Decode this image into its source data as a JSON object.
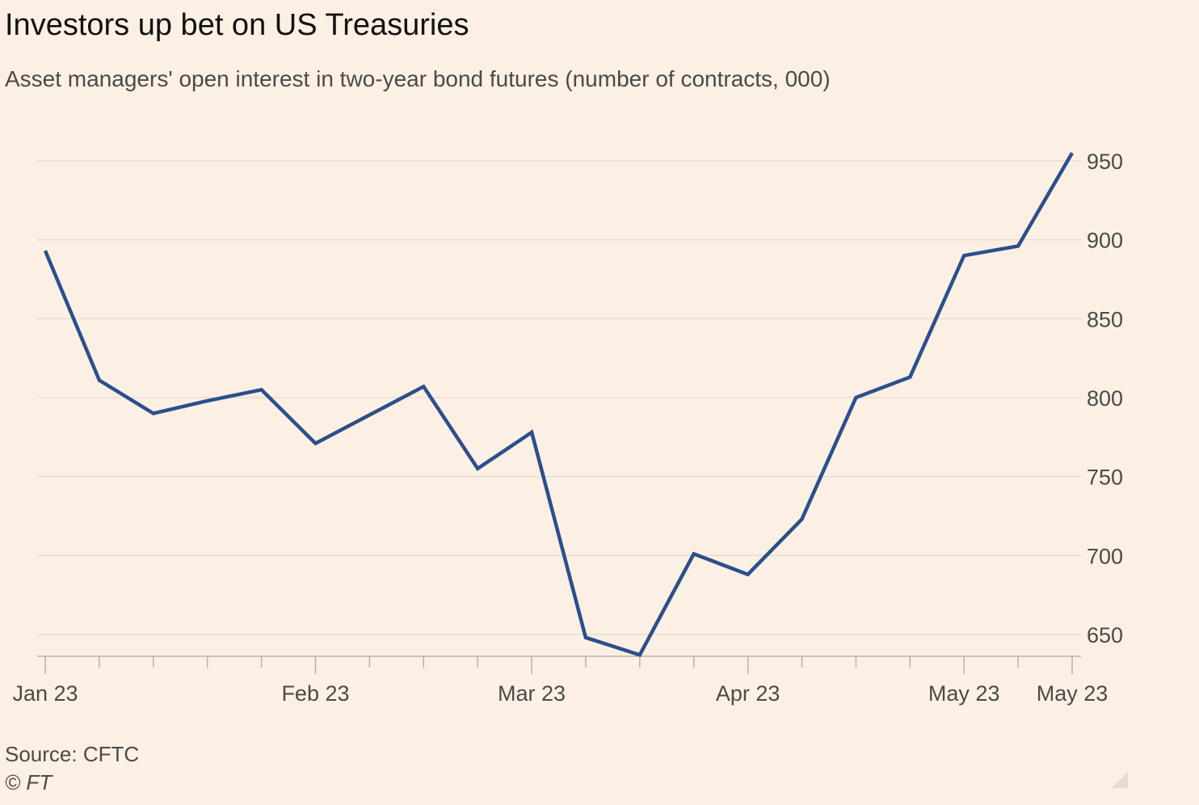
{
  "title": "Investors up bet on US Treasuries",
  "subtitle": "Asset managers' open interest in two-year bond futures (number of contracts, 000)",
  "source": "Source: CFTC",
  "credit": "© FT",
  "colors": {
    "background": "#fcf0e4",
    "line": "#2b4f8c",
    "grid": "#e3d9cf",
    "axis": "#b9b1a9",
    "text": "#4a4a48"
  },
  "icons": {
    "resize": "resize-corner-icon"
  },
  "chart_data": {
    "type": "line",
    "title": "Investors up bet on US Treasuries",
    "subtitle": "Asset managers' open interest in two-year bond futures (number of contracts, 000)",
    "xlabel": "",
    "ylabel": "",
    "x": [
      "2023-01-03",
      "2023-01-10",
      "2023-01-17",
      "2023-01-24",
      "2023-01-31",
      "2023-02-07",
      "2023-02-14",
      "2023-02-21",
      "2023-02-28",
      "2023-03-07",
      "2023-03-14",
      "2023-03-21",
      "2023-03-28",
      "2023-04-04",
      "2023-04-11",
      "2023-04-18",
      "2023-04-25",
      "2023-05-02",
      "2023-05-09",
      "2023-05-16"
    ],
    "series": [
      {
        "values": [
          893,
          811,
          790,
          798,
          805,
          771,
          789,
          807,
          755,
          778,
          648,
          637,
          701,
          688,
          723,
          800,
          813,
          890,
          896,
          955
        ]
      }
    ],
    "ylim": [
      637,
      960
    ],
    "yticks": [
      650,
      700,
      750,
      800,
      850,
      900,
      950
    ],
    "xtick_labels": [
      {
        "label": "Jan 23",
        "index": 0
      },
      {
        "label": "Feb 23",
        "index": 5
      },
      {
        "label": "Mar 23",
        "index": 9
      },
      {
        "label": "Apr 23",
        "index": 13
      },
      {
        "label": "May 23",
        "index": 17
      },
      {
        "label": "May 23",
        "index": 19
      }
    ],
    "y_axis_side": "right",
    "grid": true,
    "legend": "none"
  }
}
